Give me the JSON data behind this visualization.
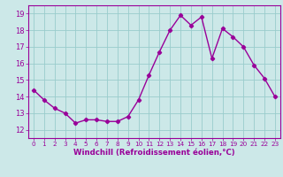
{
  "x": [
    0,
    1,
    2,
    3,
    4,
    5,
    6,
    7,
    8,
    9,
    10,
    11,
    12,
    13,
    14,
    15,
    16,
    17,
    18,
    19,
    20,
    21,
    22,
    23
  ],
  "y": [
    14.4,
    13.8,
    13.3,
    13.0,
    12.4,
    12.6,
    12.6,
    12.5,
    12.5,
    12.8,
    13.8,
    15.3,
    16.7,
    18.0,
    18.9,
    18.3,
    18.8,
    16.3,
    18.1,
    17.6,
    17.0,
    15.9,
    15.1,
    14.0
  ],
  "line_color": "#990099",
  "marker": "D",
  "marker_size": 2.2,
  "background_color": "#cce8e8",
  "grid_color": "#99cccc",
  "xlabel": "Windchill (Refroidissement éolien,°C)",
  "xlabel_color": "#990099",
  "tick_color": "#990099",
  "spine_color": "#990099",
  "ylim": [
    11.5,
    19.5
  ],
  "yticks": [
    12,
    13,
    14,
    15,
    16,
    17,
    18,
    19
  ],
  "xlim": [
    -0.5,
    23.5
  ],
  "xticks": [
    0,
    1,
    2,
    3,
    4,
    5,
    6,
    7,
    8,
    9,
    10,
    11,
    12,
    13,
    14,
    15,
    16,
    17,
    18,
    19,
    20,
    21,
    22,
    23
  ],
  "ytick_fontsize": 6.0,
  "xtick_fontsize": 5.2,
  "xlabel_fontsize": 6.2,
  "linewidth": 1.0
}
